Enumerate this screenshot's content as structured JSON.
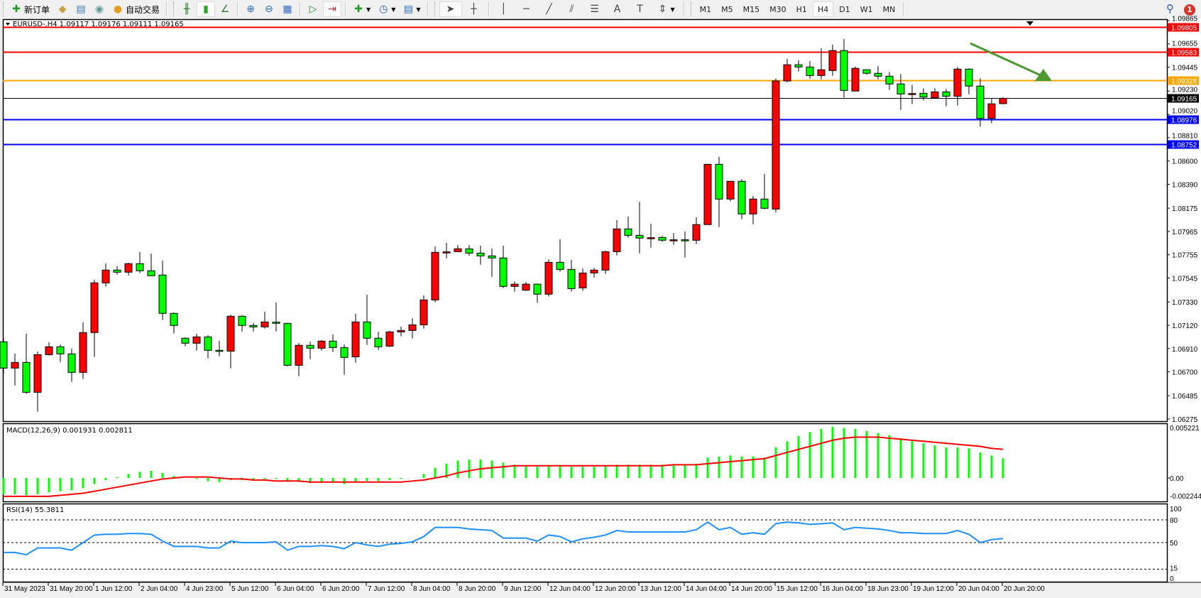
{
  "toolbar": {
    "items": [
      {
        "icon": "new-order-icon",
        "glyph": "✚",
        "color": "#2a9a2a",
        "label": "新订单"
      },
      {
        "icon": "market-watch-icon",
        "glyph": "◆",
        "color": "#c8a040",
        "label": ""
      },
      {
        "icon": "data-window-icon",
        "glyph": "▤",
        "color": "#3a7ac0",
        "label": ""
      },
      {
        "icon": "navigator-icon",
        "glyph": "◉",
        "color": "#5a9a9a",
        "label": ""
      },
      {
        "icon": "auto-trading-icon",
        "glyph": "●",
        "color": "#e0a020",
        "label": "自动交易"
      }
    ],
    "chart_tools": [
      {
        "icon": "bar-chart-icon",
        "glyph": "╫",
        "color": "#2a7a2a"
      },
      {
        "icon": "candlestick-icon",
        "glyph": "▮",
        "color": "#22aa22",
        "active": true
      },
      {
        "icon": "line-chart-icon",
        "glyph": "∠",
        "color": "#2a7a2a"
      },
      {
        "icon": "zoom-in-icon",
        "glyph": "⊕",
        "color": "#2a6ac0"
      },
      {
        "icon": "zoom-out-icon",
        "glyph": "⊖",
        "color": "#2a6ac0"
      },
      {
        "icon": "tile-windows-icon",
        "glyph": "▦",
        "color": "#2a6ac0"
      },
      {
        "icon": "auto-scroll-icon",
        "glyph": "▷",
        "color": "#2a8a2a"
      },
      {
        "icon": "chart-shift-icon",
        "glyph": "⇥",
        "color": "#c03030",
        "active": true
      },
      {
        "icon": "indicators-icon",
        "glyph": "✚",
        "color": "#2a9a2a",
        "dropdown": true
      },
      {
        "icon": "periods-icon",
        "glyph": "◷",
        "color": "#2a5aa0",
        "dropdown": true
      },
      {
        "icon": "templates-icon",
        "glyph": "▤",
        "color": "#2a6ac0",
        "dropdown": true
      }
    ],
    "draw_tools": [
      {
        "icon": "cursor-icon",
        "glyph": "➤",
        "active": true
      },
      {
        "icon": "crosshair-icon",
        "glyph": "┼"
      },
      {
        "icon": "vertical-line-icon",
        "glyph": "│"
      },
      {
        "icon": "horizontal-line-icon",
        "glyph": "─"
      },
      {
        "icon": "trendline-icon",
        "glyph": "╱"
      },
      {
        "icon": "equidistant-channel-icon",
        "glyph": "⫽"
      },
      {
        "icon": "fibonacci-icon",
        "glyph": "☰"
      },
      {
        "icon": "text-icon",
        "glyph": "A"
      },
      {
        "icon": "text-label-icon",
        "glyph": "T"
      },
      {
        "icon": "arrows-icon",
        "glyph": "⇕",
        "dropdown": true
      }
    ],
    "timeframes": [
      "M1",
      "M5",
      "M15",
      "M30",
      "H1",
      "H4",
      "D1",
      "W1",
      "MN"
    ],
    "active_timeframe": "H4",
    "notification_count": "1"
  },
  "chart": {
    "title": "EURUSD-,H4  1.09117 1.09176 1.09111 1.09165",
    "colors": {
      "up": "#ff0000",
      "down": "#00ff00",
      "outline": "#000000",
      "macd_hist": "#00ff00",
      "macd_signal": "#ff0000",
      "rsi": "#1e90ff",
      "arrow": "#4a9a30"
    },
    "price_ticks": [
      "1.09865",
      "1.09655",
      "1.09445",
      "1.09230",
      "1.09020",
      "1.08810",
      "1.08600",
      "1.08390",
      "1.08175",
      "1.07965",
      "1.07755",
      "1.07545",
      "1.07330",
      "1.07120",
      "1.06910",
      "1.06700",
      "1.06485",
      "1.06275"
    ],
    "horizontal_lines": [
      {
        "price": 1.09805,
        "label": "1.09805",
        "color": "#ff0000"
      },
      {
        "price": 1.09583,
        "label": "1.09583",
        "color": "#ff0000"
      },
      {
        "price": 1.09328,
        "label": "1.09328",
        "color": "#ffa500"
      },
      {
        "price": 1.09165,
        "label": "1.09165",
        "color": "#000000"
      },
      {
        "price": 1.08976,
        "label": "1.08976",
        "color": "#0000ff"
      },
      {
        "price": 1.08752,
        "label": "1.08752",
        "color": "#0000ff"
      }
    ],
    "date_labels": [
      "31 May 2023",
      "31 May 20:00",
      "1 Jun 12:00",
      "2 Jun 04:00",
      "4 Jun 23:00",
      "5 Jun 12:00",
      "6 Jun 04:00",
      "6 Jun 20:00",
      "7 Jun 12:00",
      "8 Jun 04:00",
      "8 Jun 20:00",
      "9 Jun 12:00",
      "12 Jun 04:00",
      "12 Jun 20:00",
      "13 Jun 12:00",
      "14 Jun 04:00",
      "14 Jun 20:00",
      "15 Jun 12:00",
      "16 Jun 04:00",
      "18 Jun 23:00",
      "19 Jun 12:00",
      "20 Jun 04:00",
      "20 Jun 20:00"
    ],
    "macd": {
      "title": "MACD(12,26,9) 0.001931 0.002811",
      "ticks": [
        "0.005221",
        "0.00",
        "-0.002244"
      ]
    },
    "rsi": {
      "title": "RSI(14) 55.3811",
      "ticks": [
        "100",
        "80",
        "50",
        "15",
        "0"
      ],
      "levels": [
        80,
        50,
        15
      ]
    }
  },
  "chart_data": {
    "type": "candlestick",
    "symbol": "EURUSD-",
    "timeframe": "H4",
    "ylim": [
      1.06275,
      1.09865
    ],
    "ohlc": [
      [
        1.06971,
        1.07005,
        1.06687,
        1.06734
      ],
      [
        1.06734,
        1.06864,
        1.06578,
        1.06785
      ],
      [
        1.06785,
        1.07043,
        1.06501,
        1.06516
      ],
      [
        1.06516,
        1.06883,
        1.06341,
        1.06855
      ],
      [
        1.06855,
        1.06966,
        1.06847,
        1.06926
      ],
      [
        1.06926,
        1.06947,
        1.06789,
        1.06862
      ],
      [
        1.06862,
        1.06909,
        1.0661,
        1.06695
      ],
      [
        1.06695,
        1.07146,
        1.06636,
        1.07054
      ],
      [
        1.07054,
        1.0753,
        1.06834,
        1.07502
      ],
      [
        1.07502,
        1.07677,
        1.07468,
        1.07617
      ],
      [
        1.07617,
        1.07651,
        1.07576,
        1.07598
      ],
      [
        1.07598,
        1.07683,
        1.0757,
        1.07675
      ],
      [
        1.07675,
        1.0778,
        1.07589,
        1.07611
      ],
      [
        1.07611,
        1.07766,
        1.07566,
        1.07566
      ],
      [
        1.07572,
        1.07702,
        1.07167,
        1.07227
      ],
      [
        1.07227,
        1.07235,
        1.07045,
        1.07118
      ],
      [
        1.07003,
        1.07011,
        1.0693,
        1.06958
      ],
      [
        1.06958,
        1.07043,
        1.06892,
        1.07015
      ],
      [
        1.07015,
        1.0703,
        1.06821,
        1.06894
      ],
      [
        1.06894,
        1.0698,
        1.0684,
        1.06892
      ],
      [
        1.06887,
        1.07216,
        1.06732,
        1.07201
      ],
      [
        1.07201,
        1.07209,
        1.07064,
        1.07118
      ],
      [
        1.07118,
        1.0714,
        1.07064,
        1.07105
      ],
      [
        1.07105,
        1.07242,
        1.0709,
        1.0715
      ],
      [
        1.07148,
        1.07325,
        1.07064,
        1.07137
      ],
      [
        1.07137,
        1.07143,
        1.0675,
        1.06759
      ],
      [
        1.06759,
        1.0696,
        1.06661,
        1.06939
      ],
      [
        1.06939,
        1.06973,
        1.06815,
        1.06913
      ],
      [
        1.06913,
        1.06986,
        1.06892,
        1.06977
      ],
      [
        1.06977,
        1.07037,
        1.06879,
        1.06919
      ],
      [
        1.06919,
        1.06947,
        1.06674,
        1.0683
      ],
      [
        1.06836,
        1.07222,
        1.06783,
        1.0715
      ],
      [
        1.0715,
        1.07395,
        1.06943,
        1.07003
      ],
      [
        1.07003,
        1.07062,
        1.06898,
        1.06926
      ],
      [
        1.06932,
        1.07069,
        1.06924,
        1.0706
      ],
      [
        1.0706,
        1.07107,
        1.0702,
        1.07073
      ],
      [
        1.07073,
        1.07184,
        1.07001,
        1.07124
      ],
      [
        1.07124,
        1.07389,
        1.0709,
        1.07348
      ],
      [
        1.07348,
        1.0783,
        1.07327,
        1.07777
      ],
      [
        1.07777,
        1.07862,
        1.07724,
        1.07781
      ],
      [
        1.07783,
        1.07843,
        1.07783,
        1.07809
      ],
      [
        1.07809,
        1.07843,
        1.07747,
        1.0777
      ],
      [
        1.0777,
        1.07837,
        1.07666,
        1.07745
      ],
      [
        1.07745,
        1.07811,
        1.07557,
        1.07726
      ],
      [
        1.07726,
        1.07837,
        1.07455,
        1.0747
      ],
      [
        1.0747,
        1.07515,
        1.07423,
        1.0749
      ],
      [
        1.07436,
        1.0751,
        1.07429,
        1.0749
      ],
      [
        1.0749,
        1.07495,
        1.07321,
        1.074
      ],
      [
        1.074,
        1.07715,
        1.07378,
        1.07687
      ],
      [
        1.07687,
        1.07894,
        1.07602,
        1.07623
      ],
      [
        1.07623,
        1.07709,
        1.07423,
        1.0745
      ],
      [
        1.07457,
        1.07632,
        1.07429,
        1.07591
      ],
      [
        1.07591,
        1.07638,
        1.0755,
        1.07617
      ],
      [
        1.07617,
        1.0779,
        1.07583,
        1.07783
      ],
      [
        1.07783,
        1.08067,
        1.07749,
        1.07988
      ],
      [
        1.07988,
        1.08099,
        1.07909,
        1.0793
      ],
      [
        1.0793,
        1.08233,
        1.07768,
        1.07905
      ],
      [
        1.07905,
        1.08035,
        1.0782,
        1.07909
      ],
      [
        1.07911,
        1.07926,
        1.07871,
        1.07886
      ],
      [
        1.07886,
        1.07952,
        1.07845,
        1.0789
      ],
      [
        1.0789,
        1.07965,
        1.0773,
        1.07888
      ],
      [
        1.07886,
        1.08093,
        1.07852,
        1.08027
      ],
      [
        1.08027,
        1.0857,
        1.08027,
        1.0857
      ],
      [
        1.0857,
        1.08637,
        1.08005,
        1.08257
      ],
      [
        1.08257,
        1.08417,
        1.08236,
        1.08417
      ],
      [
        1.08417,
        1.08436,
        1.08076,
        1.08123
      ],
      [
        1.08123,
        1.08285,
        1.08031,
        1.08257
      ],
      [
        1.08257,
        1.08483,
        1.08165,
        1.08174
      ],
      [
        1.08167,
        1.09343,
        1.08136,
        1.09321
      ],
      [
        1.09321,
        1.0952,
        1.09311,
        1.09467
      ],
      [
        1.09467,
        1.09507,
        1.09407,
        1.09447
      ],
      [
        1.09447,
        1.09501,
        1.09343,
        1.0937
      ],
      [
        1.0937,
        1.09616,
        1.09336,
        1.09422
      ],
      [
        1.09415,
        1.09648,
        1.09368,
        1.09595
      ],
      [
        1.09595,
        1.09699,
        1.0917,
        1.09236
      ],
      [
        1.0923,
        1.0945,
        1.0923,
        1.09435
      ],
      [
        1.09422,
        1.09422,
        1.09377,
        1.0939
      ],
      [
        1.0939,
        1.09456,
        1.09336,
        1.09364
      ],
      [
        1.09364,
        1.09403,
        1.0924,
        1.09294
      ],
      [
        1.09294,
        1.09383,
        1.09061,
        1.09204
      ],
      [
        1.09204,
        1.09287,
        1.09112,
        1.09208
      ],
      [
        1.0921,
        1.09255,
        1.09144,
        1.09176
      ],
      [
        1.0917,
        1.09255,
        1.09162,
        1.09223
      ],
      [
        1.09223,
        1.09249,
        1.09093,
        1.09183
      ],
      [
        1.09183,
        1.09447,
        1.091,
        1.09428
      ],
      [
        1.09428,
        1.09435,
        1.09202,
        1.09275
      ],
      [
        1.09275,
        1.09345,
        1.08908,
        1.08984
      ],
      [
        1.08984,
        1.09166,
        1.0894,
        1.09115
      ],
      [
        1.09117,
        1.09176,
        1.09111,
        1.09165
      ]
    ],
    "macd_histogram": [
      -0.0016,
      -0.0016,
      -0.0017,
      -0.0016,
      -0.0014,
      -0.0013,
      -0.0012,
      -0.001,
      -0.0006,
      -0.0002,
      0.0001,
      0.0004,
      0.0006,
      0.0007,
      0.0005,
      0.0002,
      0.0,
      -0.0001,
      -0.0003,
      -0.0004,
      -0.0002,
      -0.0002,
      -0.0002,
      -0.0001,
      -0.0001,
      -0.0003,
      -0.0004,
      -0.0005,
      -0.0005,
      -0.0005,
      -0.0006,
      -0.0004,
      -0.0003,
      -0.0003,
      -0.0002,
      -0.0001,
      0.0,
      0.0004,
      0.001,
      0.0014,
      0.0017,
      0.0018,
      0.0018,
      0.0017,
      0.0015,
      0.0013,
      0.0012,
      0.0011,
      0.0012,
      0.0012,
      0.0011,
      0.0011,
      0.0011,
      0.0012,
      0.0013,
      0.0013,
      0.0013,
      0.0013,
      0.0013,
      0.0013,
      0.0013,
      0.0014,
      0.002,
      0.0021,
      0.0022,
      0.0021,
      0.0021,
      0.002,
      0.003,
      0.0036,
      0.0041,
      0.0045,
      0.0048,
      0.005,
      0.0049,
      0.0048,
      0.0046,
      0.0044,
      0.0042,
      0.0039,
      0.0036,
      0.0034,
      0.0032,
      0.003,
      0.003,
      0.0029,
      0.0025,
      0.0022,
      0.001931
    ],
    "macd_signal": [
      -0.0018,
      -0.0018,
      -0.0018,
      -0.0018,
      -0.0018,
      -0.0017,
      -0.0016,
      -0.0015,
      -0.0013,
      -0.0011,
      -0.0009,
      -0.0007,
      -0.0005,
      -0.0003,
      -0.0001,
      0.0,
      0.0001,
      0.0001,
      0.0001,
      0.0,
      -0.0001,
      -0.0001,
      -0.0002,
      -0.0002,
      -0.0003,
      -0.0003,
      -0.0003,
      -0.0004,
      -0.0004,
      -0.0004,
      -0.0004,
      -0.0004,
      -0.0004,
      -0.0004,
      -0.0004,
      -0.0004,
      -0.0003,
      -0.0002,
      0.0,
      0.0002,
      0.0005,
      0.0007,
      0.0009,
      0.001,
      0.0011,
      0.0012,
      0.0012,
      0.0012,
      0.0012,
      0.0012,
      0.0012,
      0.0012,
      0.0012,
      0.0012,
      0.0012,
      0.0012,
      0.0012,
      0.0012,
      0.0012,
      0.0013,
      0.0013,
      0.0013,
      0.0014,
      0.0015,
      0.0016,
      0.0017,
      0.0018,
      0.0019,
      0.0022,
      0.0025,
      0.0028,
      0.0031,
      0.0034,
      0.0037,
      0.0039,
      0.004,
      0.004,
      0.004,
      0.0039,
      0.0038,
      0.0037,
      0.0036,
      0.0035,
      0.0034,
      0.0033,
      0.0032,
      0.0031,
      0.0029,
      0.002811
    ],
    "macd_ylim": [
      -0.002244,
      0.005221
    ],
    "rsi": [
      37,
      37,
      34,
      43,
      43,
      43,
      40,
      50,
      60,
      61,
      61,
      62,
      62,
      61,
      52,
      45,
      45,
      45,
      43,
      43,
      52,
      50,
      50,
      50,
      51,
      40,
      45,
      45,
      46,
      45,
      42,
      50,
      47,
      45,
      48,
      49,
      51,
      58,
      70,
      70,
      70,
      68,
      67,
      66,
      56,
      56,
      56,
      52,
      60,
      58,
      51,
      55,
      57,
      60,
      66,
      64,
      64,
      64,
      64,
      64,
      64,
      67,
      77,
      67,
      70,
      61,
      63,
      61,
      75,
      77,
      76,
      74,
      75,
      76,
      67,
      70,
      69,
      68,
      66,
      63,
      63,
      62,
      62,
      62,
      66,
      61,
      50,
      54,
      55.3811
    ],
    "rsi_ylim": [
      0,
      100
    ]
  }
}
